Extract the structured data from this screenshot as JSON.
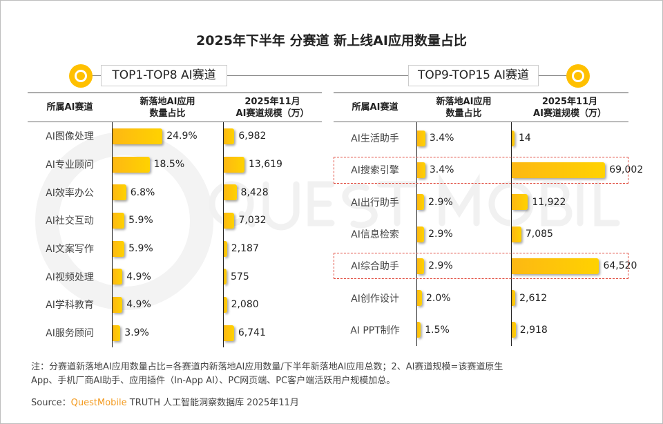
{
  "title": "2025年下半年 分赛道 新上线AI应用数量占比",
  "watermark": "QUEST MOBILE",
  "colors": {
    "bar": "#ffc000",
    "highlight_border": "#e0473a",
    "source_brand": "#f39a1e"
  },
  "headers": {
    "col1": "所属AI赛道",
    "col2_line1": "新落地AI应用",
    "col2_line2": "数量占比",
    "col3_line1": "2025年11月",
    "col3_line2": "AI赛道规模（万）"
  },
  "chart_data": [
    {
      "type": "table",
      "title": "TOP1-TOP8 AI赛道",
      "columns": [
        "所属AI赛道",
        "新落地AI应用数量占比",
        "2025年11月AI赛道规模（万）"
      ],
      "rows": [
        {
          "name": "AI图像处理",
          "share": 24.9,
          "share_label": "24.9%",
          "scale": 6982,
          "scale_label": "6,982"
        },
        {
          "name": "AI专业顾问",
          "share": 18.5,
          "share_label": "18.5%",
          "scale": 13619,
          "scale_label": "13,619"
        },
        {
          "name": "AI效率办公",
          "share": 6.8,
          "share_label": "6.8%",
          "scale": 8428,
          "scale_label": "8,428"
        },
        {
          "name": "AI社交互动",
          "share": 5.9,
          "share_label": "5.9%",
          "scale": 7032,
          "scale_label": "7,032"
        },
        {
          "name": "AI文案写作",
          "share": 5.9,
          "share_label": "5.9%",
          "scale": 2187,
          "scale_label": "2,187"
        },
        {
          "name": "AI视频处理",
          "share": 4.9,
          "share_label": "4.9%",
          "scale": 575,
          "scale_label": "575"
        },
        {
          "name": "AI学科教育",
          "share": 4.9,
          "share_label": "4.9%",
          "scale": 2080,
          "scale_label": "2,080"
        },
        {
          "name": "AI服务顾问",
          "share": 3.9,
          "share_label": "3.9%",
          "scale": 6741,
          "scale_label": "6,741"
        }
      ]
    },
    {
      "type": "table",
      "title": "TOP9-TOP15 AI赛道",
      "columns": [
        "所属AI赛道",
        "新落地AI应用数量占比",
        "2025年11月AI赛道规模（万）"
      ],
      "rows": [
        {
          "name": "AI生活助手",
          "share": 3.4,
          "share_label": "3.4%",
          "scale": 14,
          "scale_label": "14",
          "highlight": false
        },
        {
          "name": "AI搜索引擎",
          "share": 3.4,
          "share_label": "3.4%",
          "scale": 69002,
          "scale_label": "69,002",
          "highlight": true
        },
        {
          "name": "AI出行助手",
          "share": 2.9,
          "share_label": "2.9%",
          "scale": 11922,
          "scale_label": "11,922",
          "highlight": false
        },
        {
          "name": "AI信息检索",
          "share": 2.9,
          "share_label": "2.9%",
          "scale": 7085,
          "scale_label": "7,085",
          "highlight": false
        },
        {
          "name": "AI综合助手",
          "share": 2.9,
          "share_label": "2.9%",
          "scale": 64520,
          "scale_label": "64,520",
          "highlight": true
        },
        {
          "name": "AI创作设计",
          "share": 2.0,
          "share_label": "2.0%",
          "scale": 2612,
          "scale_label": "2,612",
          "highlight": false
        },
        {
          "name": "AI PPT制作",
          "share": 1.5,
          "share_label": "1.5%",
          "scale": 2918,
          "scale_label": "2,918",
          "highlight": false
        }
      ]
    }
  ],
  "note_line1": "注：分赛道新落地AI应用数量占比=各赛道内新落地AI应用数量/下半年新落地AI应用总数；2、AI赛道规模=该赛道原生",
  "note_line2": "App、手机厂商AI助手、应用插件（In-App AI）、PC网页端、PC客户端活跃用户规模加总。",
  "source": {
    "label": "Source：",
    "brand": "QuestMobile",
    "rest": " TRUTH 人工智能洞察数据库 2025年11月"
  }
}
